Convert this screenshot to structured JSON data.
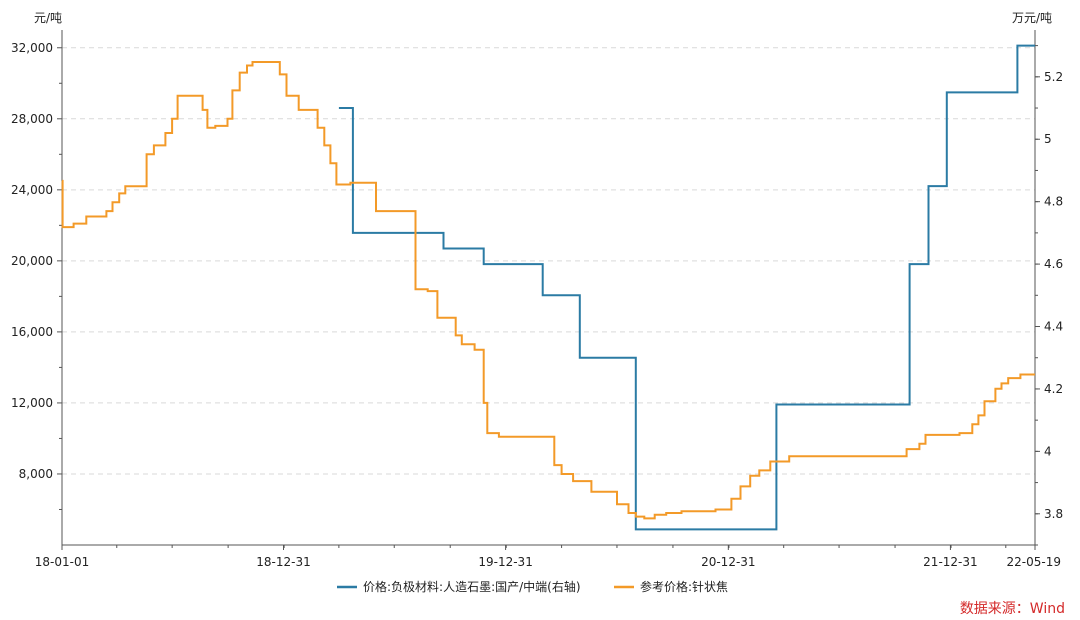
{
  "colors": {
    "series1": "#2b7ba4",
    "series2": "#f39a28",
    "grid": "#d9d9d9",
    "axis": "#555555",
    "source": "#d42a2a"
  },
  "chart_data": {
    "type": "line",
    "left_unit": "元/吨",
    "right_unit": "万元/吨",
    "source": "数据来源：Wind",
    "grid": true,
    "legend_position": "bottom",
    "x_range": [
      "2018-01-01",
      "2022-05-19"
    ],
    "x_tick_labels": [
      "18-01-01",
      "18-12-31",
      "19-12-31",
      "20-12-31",
      "21-12-31",
      "22-05-19"
    ],
    "left_ylim": [
      4000,
      33000
    ],
    "left_ticks": [
      "8,000",
      "12,000",
      "16,000",
      "20,000",
      "24,000",
      "28,000",
      "32,000"
    ],
    "right_ylim": [
      3.7,
      5.35
    ],
    "right_ticks": [
      "3.8",
      "4",
      "4.2",
      "4.4",
      "4.6",
      "4.8",
      "5",
      "5.2"
    ],
    "series": [
      {
        "name": "价格:负极材料:人造石墨:国产/中端(右轴)",
        "axis": "right",
        "step": true,
        "points": [
          [
            "2019-04-01",
            5.1
          ],
          [
            "2019-04-24",
            4.7
          ],
          [
            "2019-09-20",
            4.65
          ],
          [
            "2019-11-25",
            4.6
          ],
          [
            "2020-03-01",
            4.5
          ],
          [
            "2020-05-01",
            4.3
          ],
          [
            "2020-08-01",
            3.75
          ],
          [
            "2021-03-20",
            4.15
          ],
          [
            "2021-10-25",
            4.6
          ],
          [
            "2021-11-25",
            4.85
          ],
          [
            "2021-12-25",
            5.15
          ],
          [
            "2022-04-20",
            5.3
          ],
          [
            "2022-05-19",
            5.3
          ]
        ]
      },
      {
        "name": "参考价格:针状焦",
        "axis": "left",
        "step": true,
        "points": [
          [
            "2018-01-01",
            24500
          ],
          [
            "2018-01-02",
            21900
          ],
          [
            "2018-01-20",
            22100
          ],
          [
            "2018-02-10",
            22500
          ],
          [
            "2018-03-15",
            22800
          ],
          [
            "2018-03-25",
            23300
          ],
          [
            "2018-04-05",
            23800
          ],
          [
            "2018-04-15",
            24200
          ],
          [
            "2018-05-20",
            26000
          ],
          [
            "2018-06-01",
            26500
          ],
          [
            "2018-06-20",
            27200
          ],
          [
            "2018-07-01",
            28000
          ],
          [
            "2018-07-10",
            29300
          ],
          [
            "2018-08-20",
            28500
          ],
          [
            "2018-08-28",
            27500
          ],
          [
            "2018-09-10",
            27600
          ],
          [
            "2018-09-30",
            28000
          ],
          [
            "2018-10-08",
            29600
          ],
          [
            "2018-10-20",
            30600
          ],
          [
            "2018-11-01",
            31000
          ],
          [
            "2018-11-10",
            31200
          ],
          [
            "2018-12-25",
            30500
          ],
          [
            "2019-01-05",
            29300
          ],
          [
            "2019-01-25",
            28500
          ],
          [
            "2019-02-25",
            27500
          ],
          [
            "2019-03-08",
            26500
          ],
          [
            "2019-03-18",
            25500
          ],
          [
            "2019-03-28",
            24300
          ],
          [
            "2019-04-20",
            24400
          ],
          [
            "2019-06-01",
            22800
          ],
          [
            "2019-08-05",
            18400
          ],
          [
            "2019-08-25",
            18300
          ],
          [
            "2019-09-10",
            16800
          ],
          [
            "2019-10-10",
            15800
          ],
          [
            "2019-10-20",
            15300
          ],
          [
            "2019-11-10",
            15000
          ],
          [
            "2019-11-25",
            12000
          ],
          [
            "2019-12-01",
            10300
          ],
          [
            "2019-12-20",
            10100
          ],
          [
            "2020-03-20",
            8500
          ],
          [
            "2020-04-01",
            8000
          ],
          [
            "2020-04-20",
            7600
          ],
          [
            "2020-05-20",
            7000
          ],
          [
            "2020-07-01",
            6300
          ],
          [
            "2020-07-20",
            5800
          ],
          [
            "2020-08-01",
            5600
          ],
          [
            "2020-08-15",
            5500
          ],
          [
            "2020-09-01",
            5700
          ],
          [
            "2020-09-20",
            5800
          ],
          [
            "2020-10-15",
            5900
          ],
          [
            "2020-12-10",
            6000
          ],
          [
            "2021-01-05",
            6600
          ],
          [
            "2021-01-20",
            7300
          ],
          [
            "2021-02-05",
            7900
          ],
          [
            "2021-02-20",
            8200
          ],
          [
            "2021-03-10",
            8700
          ],
          [
            "2021-04-10",
            9000
          ],
          [
            "2021-10-20",
            9400
          ],
          [
            "2021-11-10",
            9700
          ],
          [
            "2021-11-20",
            10200
          ],
          [
            "2022-01-15",
            10300
          ],
          [
            "2022-02-05",
            10800
          ],
          [
            "2022-02-15",
            11300
          ],
          [
            "2022-02-25",
            12100
          ],
          [
            "2022-03-15",
            12800
          ],
          [
            "2022-03-25",
            13100
          ],
          [
            "2022-04-05",
            13400
          ],
          [
            "2022-04-25",
            13600
          ],
          [
            "2022-05-19",
            13600
          ]
        ]
      }
    ]
  }
}
